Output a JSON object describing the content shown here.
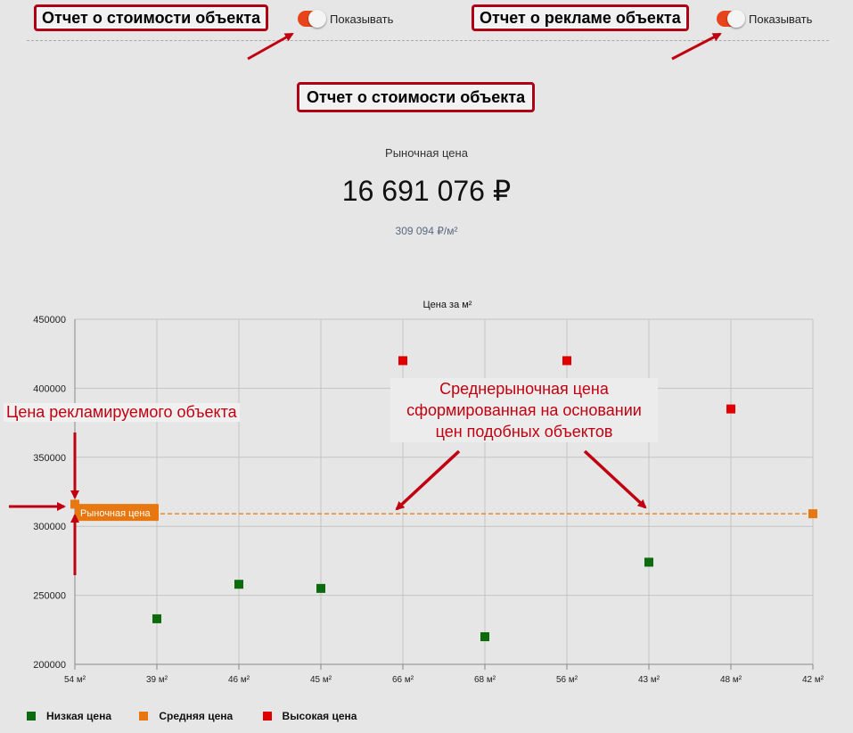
{
  "header": {
    "left_tag": "Отчет о стоимости объекта",
    "left_toggle_label": "Показывать",
    "right_tag": "Отчет о рекламе объекта",
    "right_toggle_label": "Показывать"
  },
  "report_title": "Отчет о стоимости объекта",
  "market": {
    "label": "Рыночная цена",
    "price": "16 691 076 ₽",
    "per_sqm": "309 094 ₽/м²"
  },
  "annotations": {
    "advertised": "Цена рекламируемого объекта",
    "avg_line1": "Среднерыночная цена",
    "avg_line2": "сформированная на основании",
    "avg_line3": "цен подобных объектов"
  },
  "colors": {
    "low": "#0c6b0c",
    "mid": "#e8770f",
    "high": "#e00000",
    "annotation": "#c00010"
  },
  "chart_data": {
    "type": "scatter",
    "title": "Цена за м²",
    "categories": [
      "54 м²",
      "39 м²",
      "46 м²",
      "45 м²",
      "66 м²",
      "68 м²",
      "56 м²",
      "43 м²",
      "48 м²",
      "42 м²"
    ],
    "ylim": [
      200000,
      450000
    ],
    "yticks": [
      200000,
      250000,
      300000,
      350000,
      400000,
      450000
    ],
    "ytick_labels": [
      "200000",
      "250000",
      "300000",
      "350000",
      "400000",
      "450000"
    ],
    "grid": true,
    "series": [
      {
        "name": "Низкая цена",
        "color": "#0c6b0c",
        "points": [
          [
            1,
            233000
          ],
          [
            2,
            258000
          ],
          [
            3,
            255000
          ],
          [
            5,
            220000
          ],
          [
            7,
            274000
          ]
        ]
      },
      {
        "name": "Средняя цена",
        "color": "#e8770f",
        "points": [
          [
            0,
            316000
          ],
          [
            9,
            309094
          ]
        ]
      },
      {
        "name": "Высокая цена",
        "color": "#e00000",
        "points": [
          [
            4,
            420000
          ],
          [
            6,
            420000
          ],
          [
            8,
            385000
          ]
        ]
      }
    ],
    "reference_line": {
      "value": 309094,
      "label": "Рыночная цена"
    },
    "legend_position": "bottom-left"
  }
}
